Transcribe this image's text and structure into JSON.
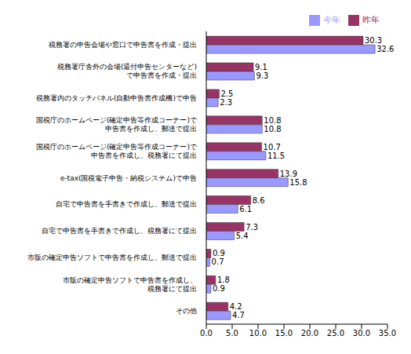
{
  "chart_data": {
    "type": "bar",
    "orientation": "horizontal",
    "categories": [
      "税務署の申告会場や窓口で申告書を作成・提出",
      "税務署庁舎外の会場(還付申告センターなど)\nで申告書を作成・提出",
      "税務署内のタッチパネル(自動申告書作成機)で申告",
      "国税庁のホームページ(確定申告等作成コーナー)で\n申告書を作成し、郵送で提出",
      "国税庁のホームページ(確定申告等作成コーナー)で\n申告書を作成し、税務署にて提出",
      "e-tax(国税電子申告・納税システム)で申告",
      "自宅で申告書を手書きで作成し、郵送で提出",
      "自宅で申告書を手書きで作成し、税務署にて提出",
      "市販の確定申告ソフトで申告書を作成し、郵送で提出",
      "市販の確定申告ソフトで申告書を作成し、\n税務署にて提出",
      "その他"
    ],
    "series": [
      {
        "name": "昨年",
        "color": "#993366",
        "values": [
          30.3,
          9.1,
          2.5,
          10.8,
          10.7,
          13.9,
          8.6,
          7.3,
          0.9,
          1.8,
          4.2
        ]
      },
      {
        "name": "今年",
        "color": "#9999ff",
        "values": [
          32.6,
          9.3,
          2.3,
          10.8,
          11.5,
          15.8,
          6.1,
          5.4,
          0.7,
          0.9,
          4.7
        ]
      }
    ],
    "xlim": [
      0,
      35
    ],
    "xticks": [
      {
        "value": 0,
        "label": "0.0"
      },
      {
        "value": 5,
        "label": "5.0"
      },
      {
        "value": 10,
        "label": "10.0"
      },
      {
        "value": 15,
        "label": "15.0"
      },
      {
        "value": 20,
        "label": "20.0"
      },
      {
        "value": 25,
        "label": "25.0"
      },
      {
        "value": 30,
        "label": "30.0"
      },
      {
        "value": 35,
        "label": "35.0"
      }
    ],
    "data_labels": true,
    "legend": "top-right",
    "grid": false
  }
}
